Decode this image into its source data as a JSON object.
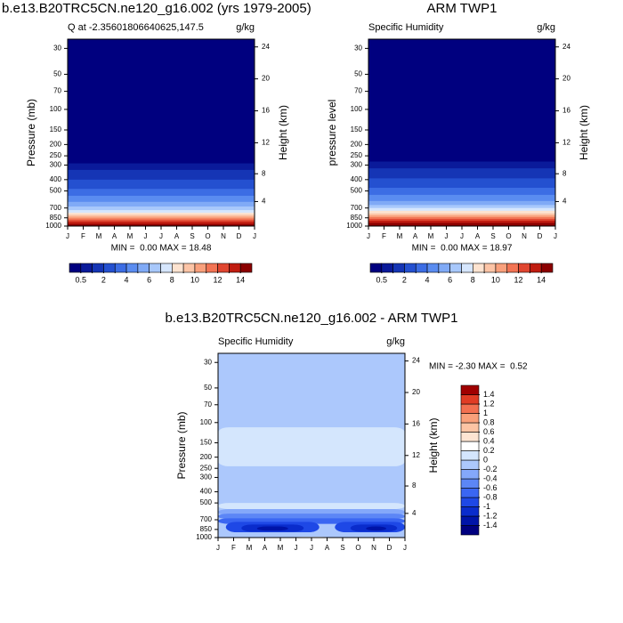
{
  "chart_data": [
    {
      "type": "contour",
      "title": "b.e13.B20TRC5CN.ne120_g16.002 (yrs 1979-2005)",
      "subtitle_left": "Q at -2.35601806640625,147.5",
      "subtitle_right": "g/kg",
      "ylabel": "Pressure (mb)",
      "y2label": "Height (km)",
      "categories": [
        "J",
        "F",
        "M",
        "A",
        "M",
        "J",
        "J",
        "A",
        "S",
        "O",
        "N",
        "D",
        "J"
      ],
      "ylim": [
        1000,
        25
      ],
      "log_y": true,
      "yticks": [
        30,
        50,
        70,
        100,
        150,
        200,
        250,
        300,
        400,
        500,
        700,
        850,
        1000
      ],
      "y2ticks": [
        4,
        8,
        12,
        16,
        20,
        24
      ],
      "stats": "MIN =  0.00 MAX = 18.48",
      "colorbar": "horizontal",
      "levels": [
        0.5,
        1,
        2,
        3,
        4,
        5,
        6,
        7,
        8,
        9,
        10,
        11,
        12,
        13,
        14
      ],
      "colors": [
        "#00007f",
        "#0a1a9a",
        "#1535b5",
        "#2450d0",
        "#3c6de4",
        "#5a8cf0",
        "#80aaf6",
        "#a8c8fb",
        "#d6e6fd",
        "#fde3d0",
        "#fcc4a6",
        "#f9a07c",
        "#f27454",
        "#e04630",
        "#c01c10",
        "#8b0000"
      ],
      "level_pressure": [
        290,
        330,
        400,
        480,
        550,
        620,
        680,
        730,
        770,
        800,
        830,
        860,
        890,
        920,
        960
      ]
    },
    {
      "type": "contour",
      "title": "ARM TWP1",
      "subtitle_left": "Specific Humidity",
      "subtitle_right": "g/kg",
      "ylabel": "pressure level",
      "y2label": "Height (km)",
      "categories": [
        "J",
        "F",
        "M",
        "A",
        "M",
        "J",
        "J",
        "A",
        "S",
        "O",
        "N",
        "D",
        "J"
      ],
      "ylim": [
        1000,
        25
      ],
      "log_y": true,
      "yticks": [
        30,
        50,
        70,
        100,
        150,
        200,
        250,
        300,
        400,
        500,
        700,
        850,
        1000
      ],
      "y2ticks": [
        4,
        8,
        12,
        16,
        20,
        24
      ],
      "stats": "MIN =  0.00 MAX = 18.97",
      "colorbar": "horizontal",
      "levels": [
        0.5,
        1,
        2,
        3,
        4,
        5,
        6,
        7,
        8,
        9,
        10,
        11,
        12,
        13,
        14
      ],
      "colors": [
        "#00007f",
        "#0a1a9a",
        "#1535b5",
        "#2450d0",
        "#3c6de4",
        "#5a8cf0",
        "#80aaf6",
        "#a8c8fb",
        "#d6e6fd",
        "#fde3d0",
        "#fcc4a6",
        "#f9a07c",
        "#f27454",
        "#e04630",
        "#c01c10",
        "#8b0000"
      ],
      "level_pressure": [
        280,
        320,
        390,
        470,
        540,
        610,
        660,
        700,
        740,
        780,
        810,
        840,
        870,
        900,
        940
      ]
    },
    {
      "type": "contour_diff",
      "title": "b.e13.B20TRC5CN.ne120_g16.002 - ARM TWP1",
      "subtitle_left": "Specific Humidity",
      "subtitle_right": "g/kg",
      "ylabel": "Pressure (mb)",
      "y2label": "Height (km)",
      "categories": [
        "J",
        "F",
        "M",
        "A",
        "M",
        "J",
        "J",
        "A",
        "S",
        "O",
        "N",
        "D",
        "J"
      ],
      "ylim": [
        1000,
        25
      ],
      "log_y": true,
      "yticks": [
        30,
        50,
        70,
        100,
        150,
        200,
        250,
        300,
        400,
        500,
        700,
        850,
        1000
      ],
      "y2ticks": [
        4,
        8,
        12,
        16,
        20,
        24
      ],
      "stats": "MIN = -2.30 MAX =  0.52",
      "colorbar": "vertical",
      "levels": [
        -1.4,
        -1.2,
        -1,
        -0.8,
        -0.6,
        -0.4,
        -0.2,
        0,
        0.2,
        0.4,
        0.6,
        0.8,
        1,
        1.2,
        1.4
      ],
      "colors": [
        "#000080",
        "#0014a8",
        "#0a2ccc",
        "#1e48e6",
        "#3a66f2",
        "#5c86f6",
        "#84a8fa",
        "#acc8fc",
        "#d4e6fd",
        "#ffffff",
        "#fde4d2",
        "#fcc4a4",
        "#f9a07a",
        "#f27050",
        "#e03c24",
        "#a00000"
      ],
      "background_level": -0.2,
      "regions": [
        {
          "above": 0,
          "x": [
            0,
            12
          ],
          "p": [
            110,
            240
          ]
        },
        {
          "above": 0,
          "x": [
            0,
            12
          ],
          "p": [
            500,
            565
          ]
        },
        {
          "above": -0.4,
          "x": [
            0,
            12
          ],
          "p": [
            565,
            640
          ]
        },
        {
          "above": -0.6,
          "x": [
            0,
            12
          ],
          "p": [
            620,
            690
          ]
        },
        {
          "above": -0.8,
          "x": [
            0,
            12
          ],
          "p": [
            680,
            760
          ]
        },
        {
          "above": -1,
          "x": [
            0.5,
            6.5
          ],
          "p": [
            730,
            900
          ]
        },
        {
          "above": -1,
          "x": [
            7.5,
            12
          ],
          "p": [
            730,
            900
          ]
        },
        {
          "above": -1.2,
          "x": [
            1.5,
            5.5
          ],
          "p": [
            770,
            890
          ]
        },
        {
          "above": -1.2,
          "x": [
            8.5,
            11.5
          ],
          "p": [
            770,
            890
          ]
        },
        {
          "above": -1.4,
          "x": [
            2.5,
            4.5
          ],
          "p": [
            800,
            870
          ]
        },
        {
          "above": -1.4,
          "x": [
            9.5,
            10.8
          ],
          "p": [
            800,
            870
          ]
        },
        {
          "above": -0.2,
          "x": [
            0,
            12
          ],
          "p": [
            900,
            1000
          ]
        },
        {
          "above": 0.2,
          "x": [
            5,
            7
          ],
          "p": [
            985,
            1000
          ]
        },
        {
          "above": 0,
          "x": [
            3.5,
            4.3
          ],
          "p": [
            540,
            565
          ]
        }
      ]
    }
  ]
}
